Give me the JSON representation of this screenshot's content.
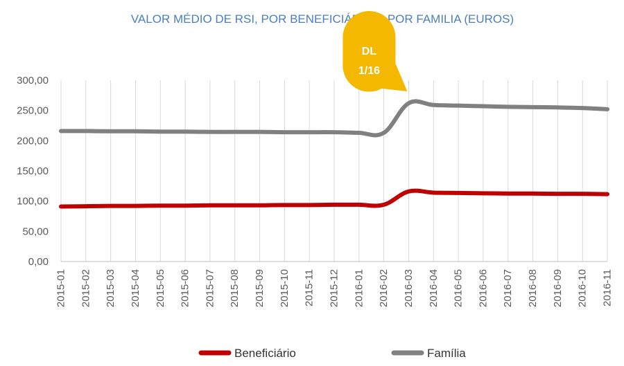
{
  "chart_data": {
    "type": "line",
    "title": "VALOR MÉDIO DE RSI, POR BENEFICIÁRIO E POR FAMILIA (EUROS)",
    "x": [
      "2015-01",
      "2015-02",
      "2015-03",
      "2015-04",
      "2015-05",
      "2015-06",
      "2015-07",
      "2015-08",
      "2015-09",
      "2015-10",
      "2015-11",
      "2015-12",
      "2016-01",
      "2016-02",
      "2016-03",
      "2016-04",
      "2016-05",
      "2016-06",
      "2016-07",
      "2016-08",
      "2016-09",
      "2016-10",
      "2016-11"
    ],
    "yticks": [
      "0,00",
      "50,00",
      "100,00",
      "150,00",
      "200,00",
      "250,00",
      "300,00"
    ],
    "ylim": [
      0,
      300
    ],
    "grid": "vertical",
    "legend_position": "bottom",
    "series": [
      {
        "name": "Beneficiário",
        "color": "#c00000",
        "values": [
          91,
          91.5,
          92,
          92,
          92.5,
          92.5,
          93,
          93,
          93,
          93.5,
          93.5,
          94,
          94,
          94,
          116,
          114,
          113.5,
          113,
          112.5,
          112.5,
          112,
          112,
          111.5
        ]
      },
      {
        "name": "Família",
        "color": "#808080",
        "values": [
          216,
          216,
          215.5,
          215.5,
          215,
          215,
          214.5,
          214.5,
          214.5,
          214,
          214,
          214,
          213,
          213,
          262,
          259,
          258,
          257,
          256,
          255.5,
          255,
          254,
          252
        ]
      }
    ],
    "annotation": {
      "line1": "DL",
      "line2": "1/16",
      "x": "2016-03",
      "color": "#f5b800"
    }
  }
}
